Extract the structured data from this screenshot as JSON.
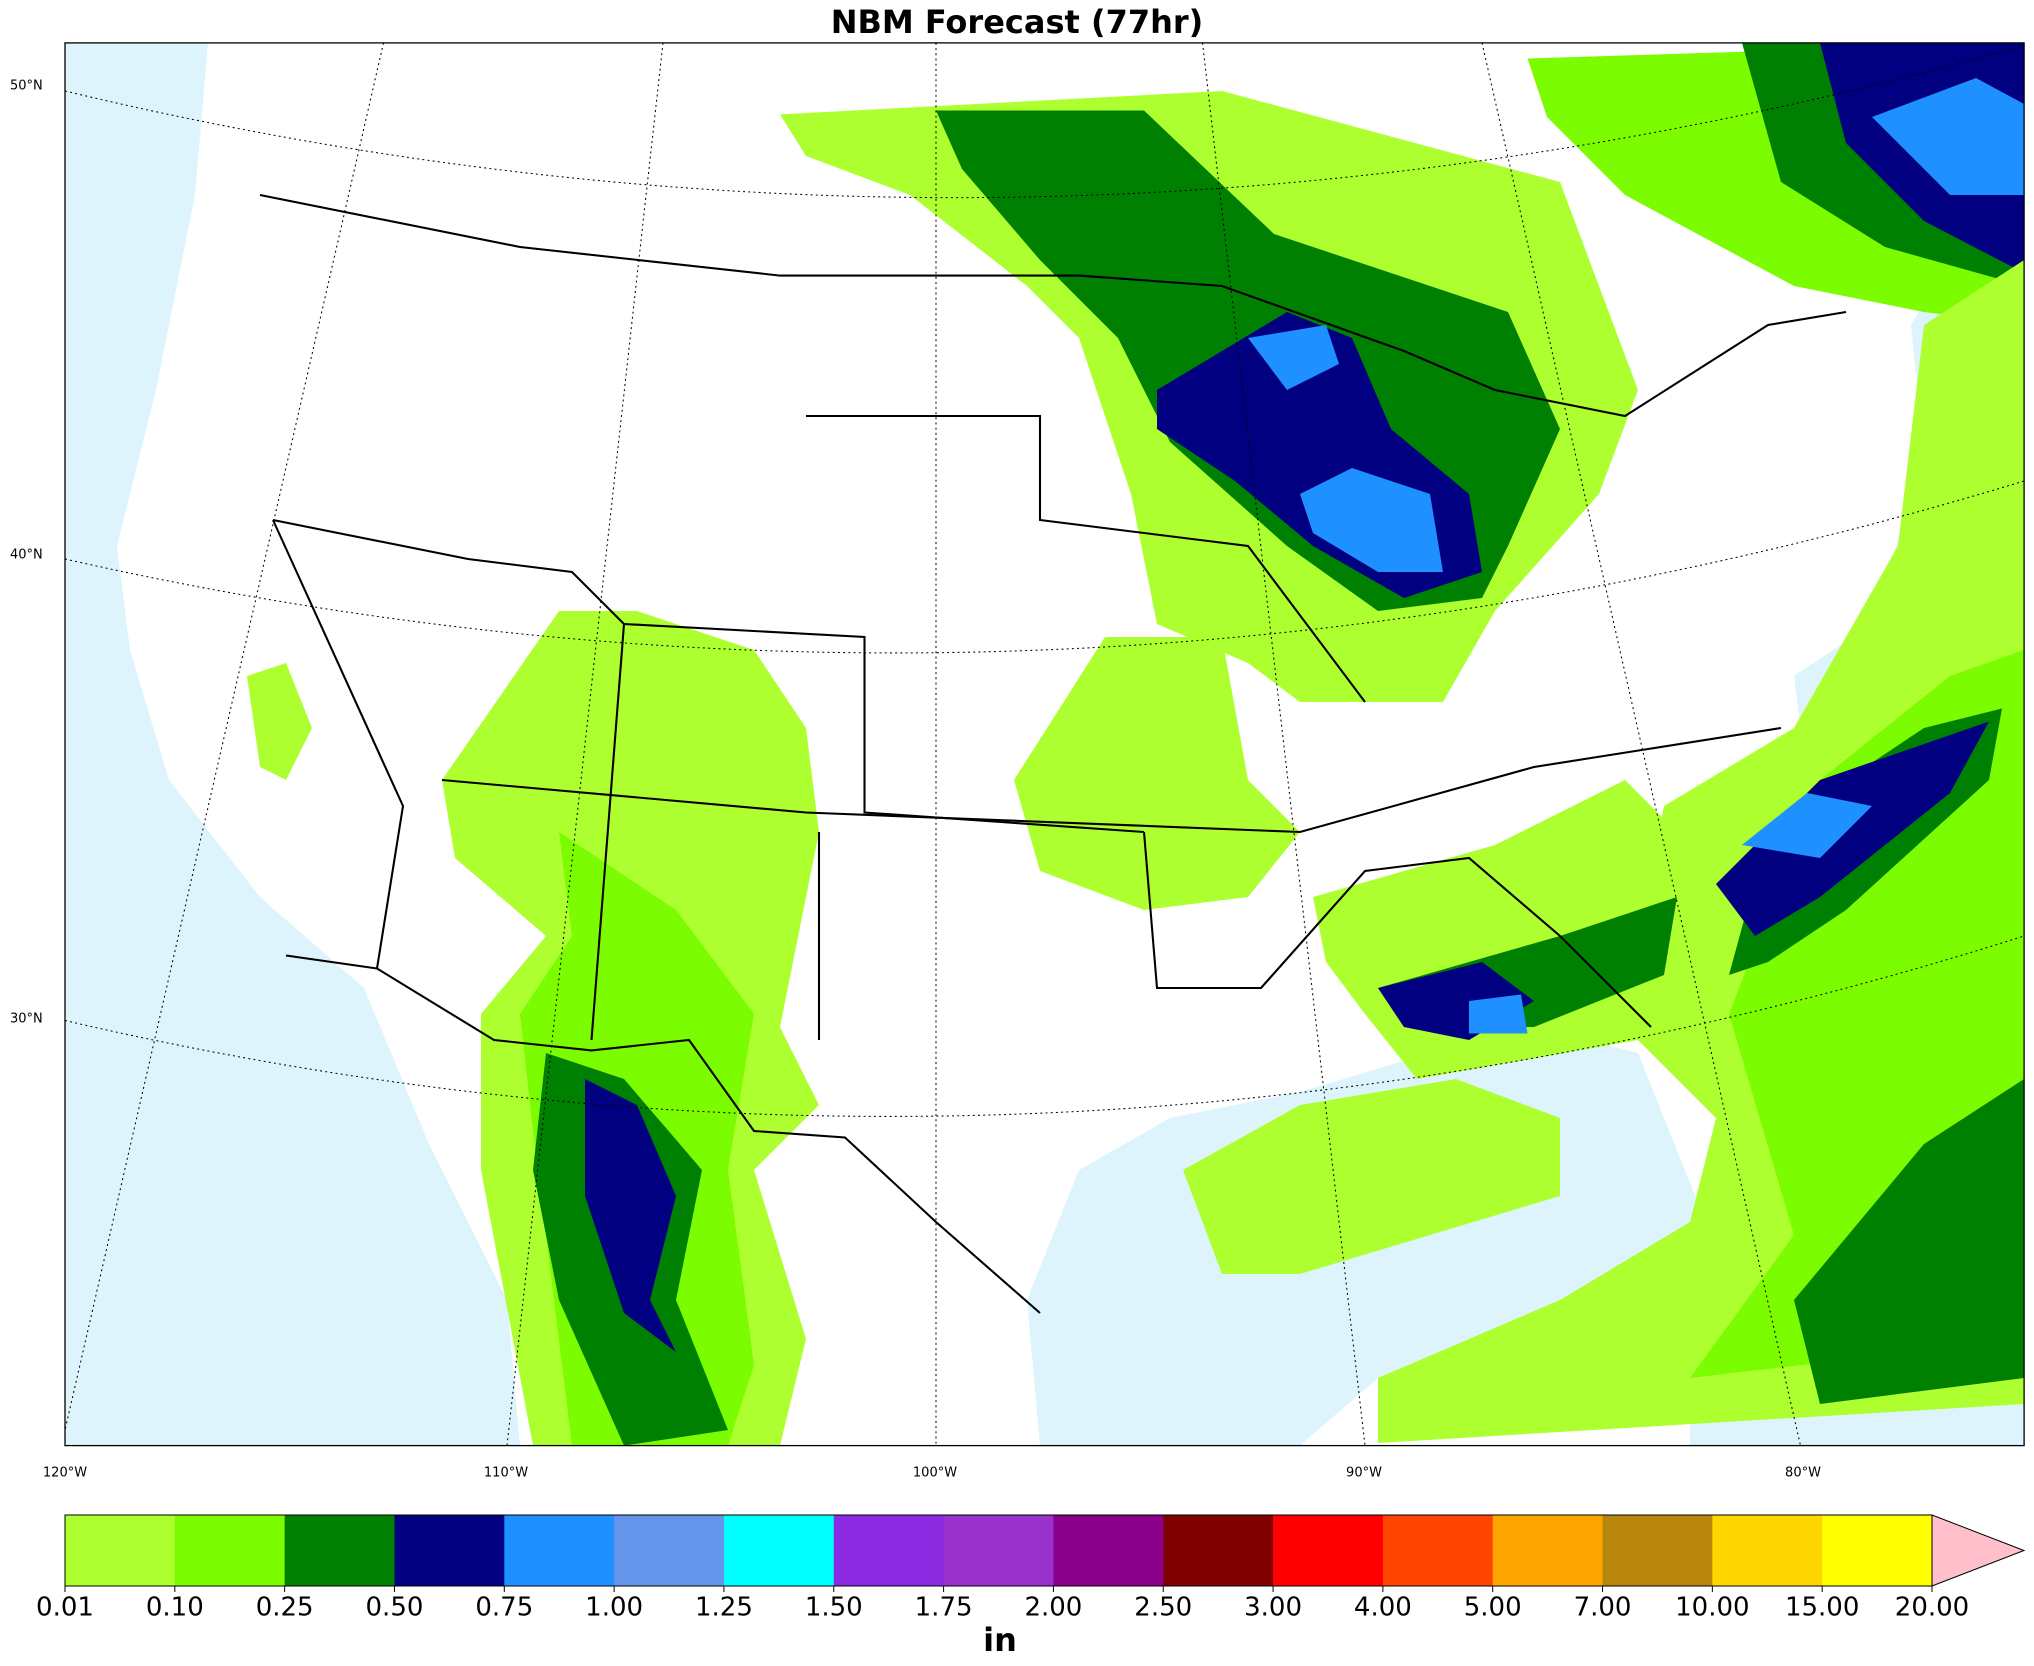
{
  "title": "NBM Forecast (77hr)",
  "map": {
    "lat_labels": [
      "50°N",
      "40°N",
      "30°N"
    ],
    "lon_labels": [
      "120°W",
      "110°W",
      "100°W",
      "90°W",
      "80°W"
    ]
  },
  "colorbar": {
    "label": "in",
    "ticks": [
      {
        "value": 0.01,
        "label": "0.01"
      },
      {
        "value": 0.1,
        "label": "0.10"
      },
      {
        "value": 0.25,
        "label": "0.25"
      },
      {
        "value": 0.5,
        "label": "0.50"
      },
      {
        "value": 0.75,
        "label": "0.75"
      },
      {
        "value": 1,
        "label": "1.00"
      },
      {
        "value": 1.25,
        "label": "1.25"
      },
      {
        "value": 1.5,
        "label": "1.50"
      },
      {
        "value": 1.75,
        "label": "1.75"
      },
      {
        "value": 2,
        "label": "2.00"
      },
      {
        "value": 2.5,
        "label": "2.50"
      },
      {
        "value": 3,
        "label": "3.00"
      },
      {
        "value": 4,
        "label": "4.00"
      },
      {
        "value": 5,
        "label": "5.00"
      },
      {
        "value": 7,
        "label": "7.00"
      },
      {
        "value": 10,
        "label": "10.00"
      },
      {
        "value": 15,
        "label": "15.00"
      },
      {
        "value": 20,
        "label": "20.00"
      }
    ],
    "colors": [
      "#adff2f",
      "#7cfc00",
      "#008000",
      "#000080",
      "#1e90ff",
      "#6495ed",
      "#00ffff",
      "#8a2be2",
      "#9932cc",
      "#8b008b",
      "#800000",
      "#ff0000",
      "#ff4500",
      "#ffa500",
      "#b8860b",
      "#ffd700",
      "#ffff00"
    ],
    "over_color": "#ffc0cb"
  }
}
